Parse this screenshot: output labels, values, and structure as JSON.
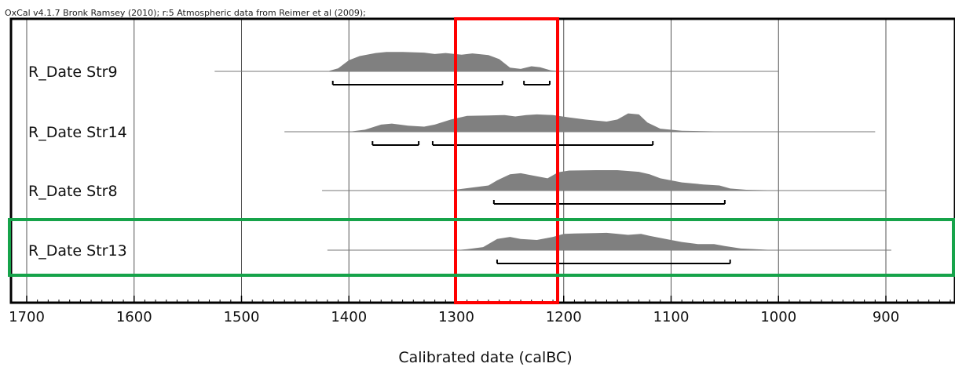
{
  "header": {
    "credit_text": "OxCal v4.1.7 Bronk Ramsey (2010); r:5 Atmospheric data from Reimer et al (2009);"
  },
  "chart_data": {
    "type": "area",
    "xlabel": "Calibrated date (calBC)",
    "x_axis_reversed": true,
    "xlim": [
      1700,
      840
    ],
    "x_ticks": [
      1700,
      1600,
      1500,
      1400,
      1300,
      1200,
      1100,
      1000,
      900
    ],
    "minor_tick_interval": 10,
    "grid": true,
    "fill_color": "#808080",
    "series": [
      {
        "name": "R_Date Str9",
        "line_range": [
          1525,
          1000
        ],
        "density": [
          [
            1525,
            0
          ],
          [
            1420,
            0
          ],
          [
            1410,
            0.15
          ],
          [
            1400,
            0.55
          ],
          [
            1390,
            0.75
          ],
          [
            1375,
            0.9
          ],
          [
            1365,
            0.95
          ],
          [
            1350,
            0.95
          ],
          [
            1330,
            0.92
          ],
          [
            1320,
            0.85
          ],
          [
            1310,
            0.9
          ],
          [
            1295,
            0.82
          ],
          [
            1285,
            0.88
          ],
          [
            1270,
            0.8
          ],
          [
            1260,
            0.6
          ],
          [
            1250,
            0.18
          ],
          [
            1240,
            0.12
          ],
          [
            1230,
            0.25
          ],
          [
            1222,
            0.2
          ],
          [
            1212,
            0.05
          ],
          [
            1200,
            0
          ],
          [
            1000,
            0
          ]
        ],
        "ranges_95": [
          [
            1415,
            1257
          ],
          [
            1237,
            1213
          ]
        ]
      },
      {
        "name": "R_Date Str14",
        "line_range": [
          1460,
          910
        ],
        "density": [
          [
            1460,
            0
          ],
          [
            1400,
            0
          ],
          [
            1385,
            0.1
          ],
          [
            1370,
            0.35
          ],
          [
            1360,
            0.4
          ],
          [
            1345,
            0.3
          ],
          [
            1330,
            0.25
          ],
          [
            1320,
            0.35
          ],
          [
            1305,
            0.6
          ],
          [
            1290,
            0.78
          ],
          [
            1270,
            0.8
          ],
          [
            1255,
            0.82
          ],
          [
            1245,
            0.75
          ],
          [
            1235,
            0.82
          ],
          [
            1225,
            0.85
          ],
          [
            1210,
            0.82
          ],
          [
            1195,
            0.7
          ],
          [
            1180,
            0.6
          ],
          [
            1170,
            0.55
          ],
          [
            1160,
            0.5
          ],
          [
            1150,
            0.6
          ],
          [
            1140,
            0.9
          ],
          [
            1130,
            0.85
          ],
          [
            1122,
            0.45
          ],
          [
            1110,
            0.15
          ],
          [
            1090,
            0.05
          ],
          [
            1060,
            0.02
          ],
          [
            910,
            0
          ]
        ],
        "ranges_95": [
          [
            1378,
            1335
          ],
          [
            1322,
            1117
          ]
        ]
      },
      {
        "name": "R_Date Str8",
        "line_range": [
          1425,
          900
        ],
        "density": [
          [
            1425,
            0
          ],
          [
            1310,
            0
          ],
          [
            1300,
            0.05
          ],
          [
            1285,
            0.15
          ],
          [
            1270,
            0.25
          ],
          [
            1262,
            0.5
          ],
          [
            1250,
            0.8
          ],
          [
            1240,
            0.85
          ],
          [
            1230,
            0.75
          ],
          [
            1215,
            0.6
          ],
          [
            1205,
            0.9
          ],
          [
            1195,
            0.98
          ],
          [
            1170,
            1.0
          ],
          [
            1150,
            1.0
          ],
          [
            1130,
            0.92
          ],
          [
            1120,
            0.8
          ],
          [
            1110,
            0.6
          ],
          [
            1090,
            0.4
          ],
          [
            1070,
            0.3
          ],
          [
            1055,
            0.25
          ],
          [
            1045,
            0.1
          ],
          [
            1030,
            0.04
          ],
          [
            1000,
            0.01
          ],
          [
            900,
            0
          ]
        ],
        "ranges_95": [
          [
            1265,
            1050
          ]
        ]
      },
      {
        "name": "R_Date Str13",
        "line_range": [
          1420,
          895
        ],
        "density": [
          [
            1420,
            0
          ],
          [
            1300,
            0
          ],
          [
            1290,
            0.05
          ],
          [
            1275,
            0.15
          ],
          [
            1262,
            0.55
          ],
          [
            1250,
            0.65
          ],
          [
            1240,
            0.55
          ],
          [
            1225,
            0.5
          ],
          [
            1210,
            0.65
          ],
          [
            1200,
            0.8
          ],
          [
            1190,
            0.82
          ],
          [
            1160,
            0.85
          ],
          [
            1140,
            0.75
          ],
          [
            1128,
            0.8
          ],
          [
            1120,
            0.7
          ],
          [
            1105,
            0.55
          ],
          [
            1090,
            0.4
          ],
          [
            1075,
            0.3
          ],
          [
            1060,
            0.3
          ],
          [
            1050,
            0.2
          ],
          [
            1035,
            0.08
          ],
          [
            1010,
            0.02
          ],
          [
            895,
            0
          ]
        ],
        "ranges_95": [
          [
            1262,
            1045
          ]
        ]
      }
    ]
  },
  "highlights": [
    {
      "name": "red-box",
      "color": "#ff0000"
    },
    {
      "name": "green-box",
      "color": "#16a34a"
    }
  ]
}
